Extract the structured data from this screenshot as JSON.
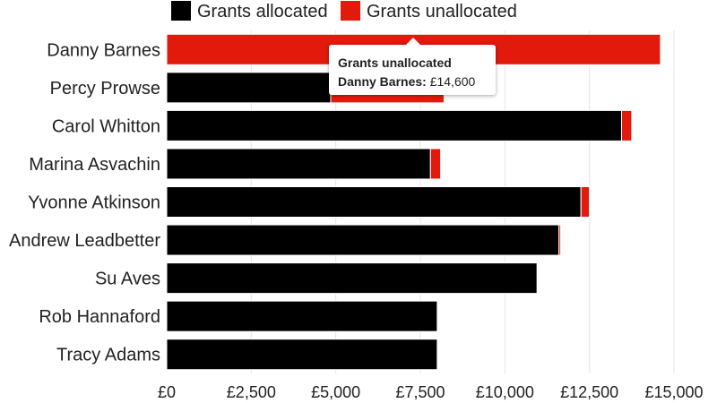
{
  "chart_data": {
    "type": "bar",
    "orientation": "horizontal",
    "stacked": true,
    "categories": [
      "Danny Barnes",
      "Percy Prowse",
      "Carol Whitton",
      "Marina Asvachin",
      "Yvonne Atkinson",
      "Andrew Leadbetter",
      "Su Aves",
      "Rob Hannaford",
      "Tracy Adams"
    ],
    "series": [
      {
        "name": "Grants allocated",
        "color": "#000000",
        "values": [
          0,
          4850,
          13450,
          7800,
          12250,
          11600,
          10950,
          8000,
          8000
        ]
      },
      {
        "name": "Grants unallocated",
        "color": "#e11a0c",
        "values": [
          14600,
          3350,
          300,
          300,
          250,
          50,
          0,
          0,
          0
        ]
      }
    ],
    "xlim": [
      0,
      15000
    ],
    "xticks": [
      "£0",
      "£2,500",
      "£5,000",
      "£7,500",
      "£10,000",
      "£12,500",
      "£15,000"
    ],
    "xtick_values": [
      0,
      2500,
      5000,
      7500,
      10000,
      12500,
      15000
    ],
    "legend_position": "top",
    "grid": true
  },
  "tooltip": {
    "series": "Grants unallocated",
    "category": "Danny Barnes:",
    "value": "£14,600"
  }
}
